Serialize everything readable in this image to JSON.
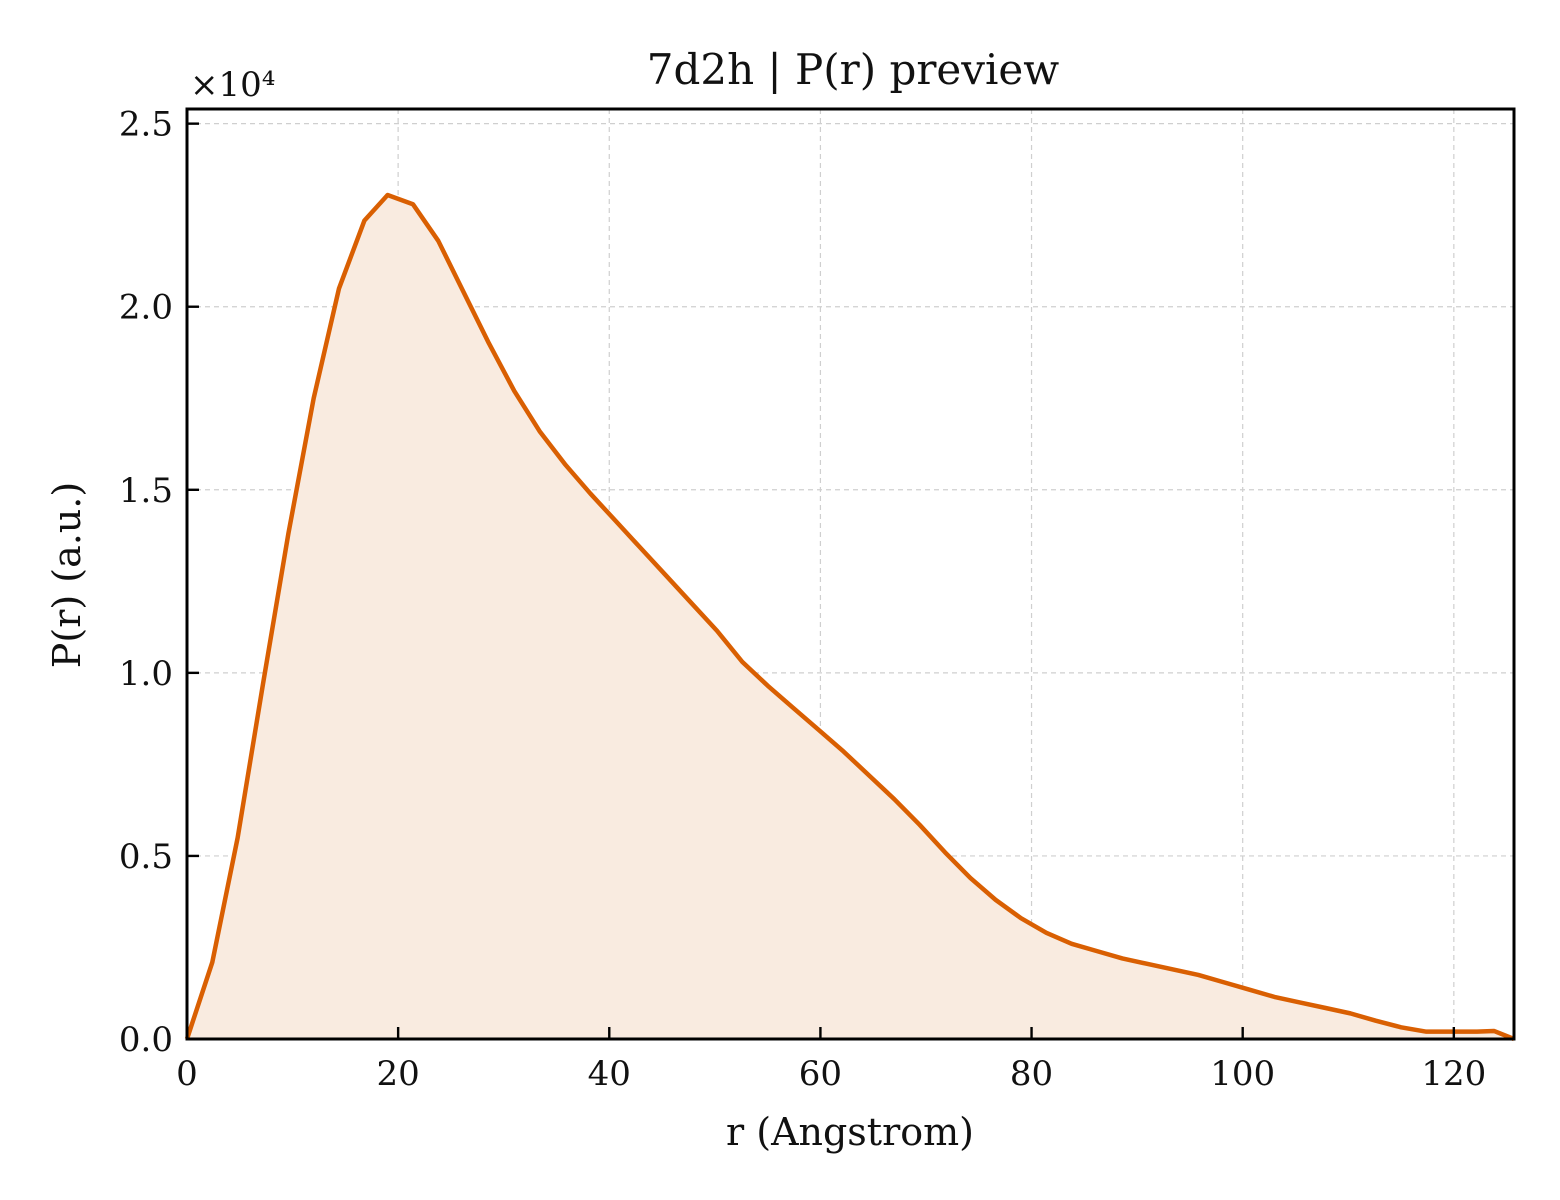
{
  "chart_data": {
    "type": "area",
    "title": "7d2h | P(r) preview",
    "xlabel": "r (Angstrom)",
    "ylabel": "P(r) (a.u.)",
    "y_multiplier": "×10⁴",
    "xlim": [
      0,
      125.7
    ],
    "ylim": [
      0,
      2.54
    ],
    "grid": true,
    "line_color": "#d95f02",
    "fill_color": "#f9ebe0",
    "x_ticks": [
      {
        "value": 0,
        "label": "0"
      },
      {
        "value": 20,
        "label": "20"
      },
      {
        "value": 40,
        "label": "40"
      },
      {
        "value": 60,
        "label": "60"
      },
      {
        "value": 80,
        "label": "80"
      },
      {
        "value": 100,
        "label": "100"
      },
      {
        "value": 120,
        "label": "120"
      }
    ],
    "y_ticks": [
      {
        "value": 0.0,
        "label": "0.0"
      },
      {
        "value": 0.5,
        "label": "0.5"
      },
      {
        "value": 1.0,
        "label": "1.0"
      },
      {
        "value": 1.5,
        "label": "1.5"
      },
      {
        "value": 2.0,
        "label": "2.0"
      },
      {
        "value": 2.5,
        "label": "2.5"
      }
    ],
    "series": [
      {
        "x": [
          0,
          2.4,
          4.8,
          7.2,
          9.6,
          12.0,
          14.4,
          16.8,
          19.0,
          21.4,
          23.8,
          26.2,
          28.6,
          31.0,
          33.4,
          35.8,
          38.2,
          40.6,
          43.0,
          45.4,
          47.8,
          50.2,
          52.6,
          55.0,
          57.4,
          59.8,
          62.2,
          64.6,
          67.0,
          69.4,
          71.8,
          74.2,
          76.6,
          79.0,
          81.4,
          83.8,
          86.2,
          88.6,
          91.0,
          93.4,
          95.8,
          98.2,
          100.6,
          103.0,
          105.4,
          107.8,
          110.2,
          112.6,
          115.0,
          117.4,
          119.8,
          122.2,
          123.8,
          125.7
        ],
        "y": [
          0.0,
          0.21,
          0.55,
          0.97,
          1.38,
          1.75,
          2.05,
          2.235,
          2.305,
          2.28,
          2.18,
          2.04,
          1.9,
          1.77,
          1.66,
          1.57,
          1.49,
          1.415,
          1.34,
          1.265,
          1.19,
          1.115,
          1.03,
          0.965,
          0.905,
          0.845,
          0.785,
          0.72,
          0.655,
          0.585,
          0.51,
          0.44,
          0.38,
          0.33,
          0.29,
          0.26,
          0.24,
          0.22,
          0.205,
          0.19,
          0.175,
          0.155,
          0.135,
          0.115,
          0.1,
          0.085,
          0.07,
          0.05,
          0.032,
          0.02,
          0.02,
          0.02,
          0.022,
          0.0
        ]
      }
    ]
  }
}
